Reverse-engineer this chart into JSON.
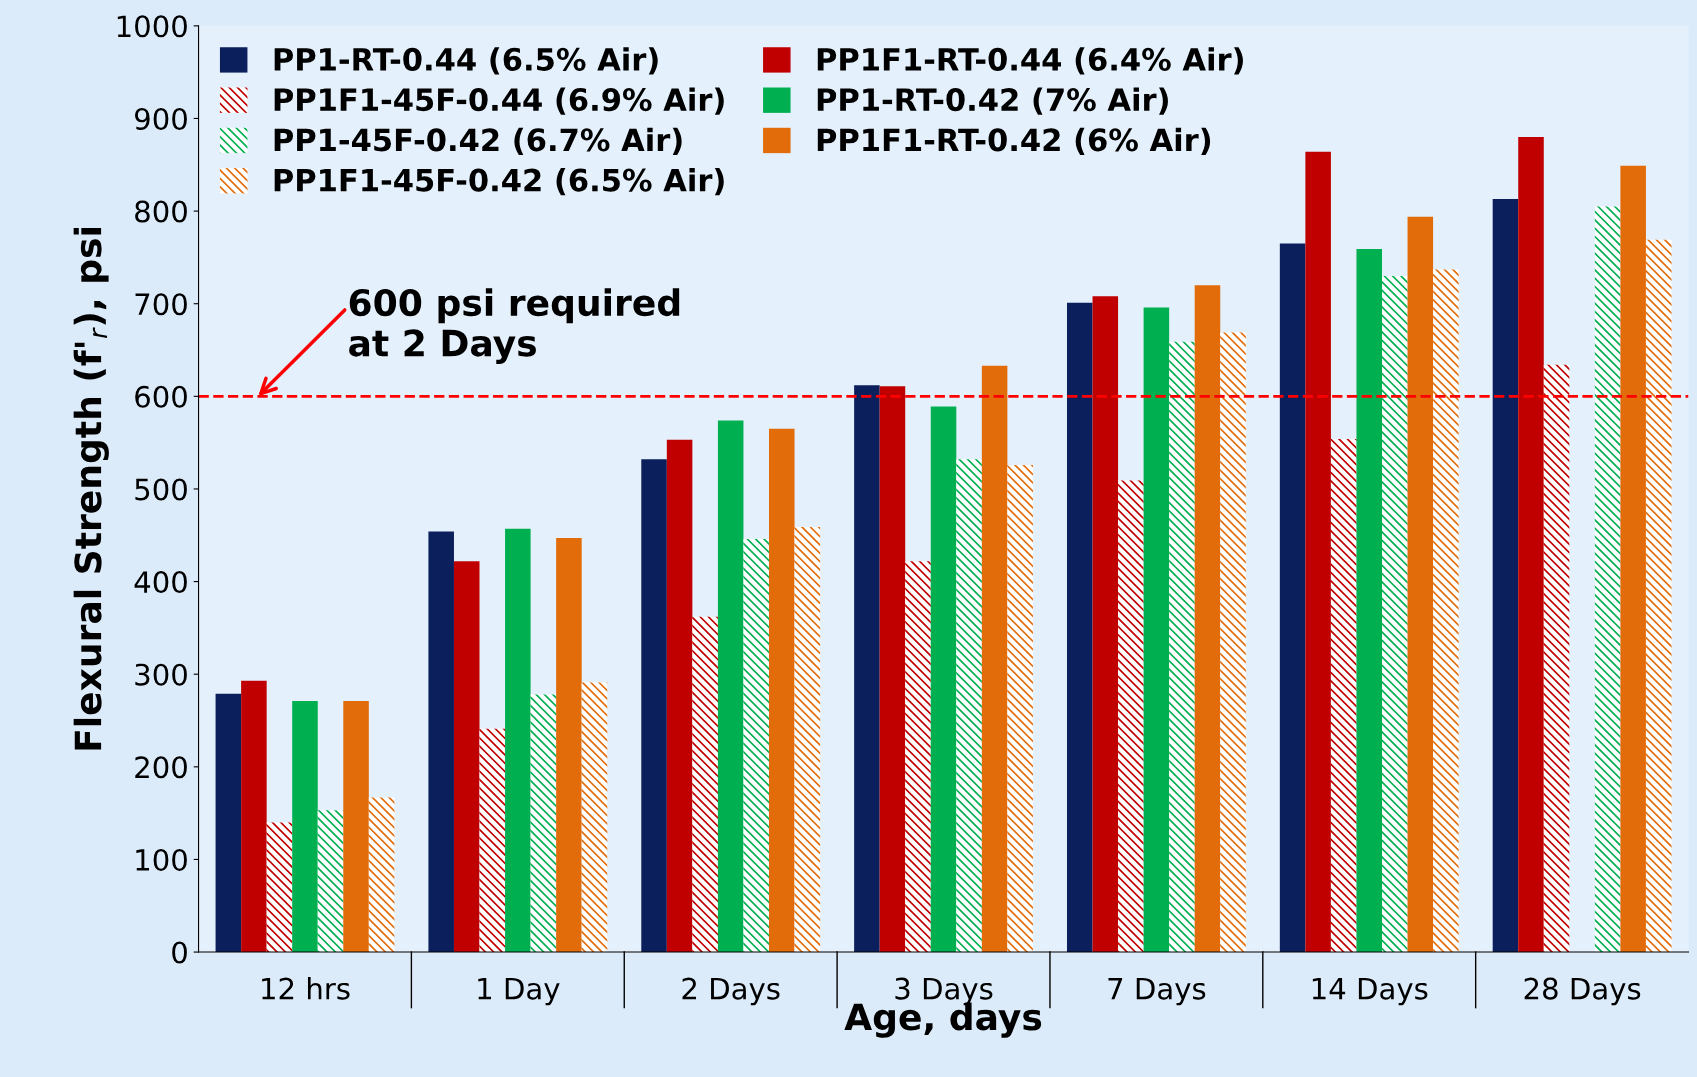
{
  "chart_data": {
    "type": "bar",
    "xlabel": "Age, days",
    "ylabel": "Flexural Strength (f'$_{r}$), psi",
    "categories": [
      "12 hrs",
      "1 Day",
      "2 Days",
      "3 Days",
      "7 Days",
      "14 Days",
      "28 Days"
    ],
    "series": [
      {
        "name": "PP1-RT-0.44 (6.5% Air)",
        "color": "#0b1f5c",
        "values": [
          279,
          454,
          532,
          612,
          701,
          765,
          813
        ]
      },
      {
        "name": "PP1F1-RT-0.44 (6.4% Air)",
        "color": "#c00000",
        "values": [
          293,
          422,
          553,
          611,
          708,
          864,
          880
        ]
      },
      {
        "name": "PP1F1-45F-0.44 (6.9% Air)",
        "color": "#c00000",
        "values": [
          140,
          241,
          362,
          422,
          509,
          554,
          634
        ]
      },
      {
        "name": "PP1-RT-0.42 (7% Air)",
        "color": "#00b050",
        "values": [
          271,
          457,
          574,
          589,
          696,
          759,
          null
        ]
      },
      {
        "name": "PP1-45F-0.42 (6.7% Air)",
        "color": "#00b050",
        "values": [
          153,
          278,
          446,
          532,
          659,
          730,
          805
        ]
      },
      {
        "name": "PP1F1-RT-0.42 (6% Air)",
        "color": "#e36c0a",
        "values": [
          271,
          447,
          565,
          633,
          720,
          794,
          849
        ]
      },
      {
        "name": "PP1F1-45F-0.42 (6.5% Air)",
        "color": "#e36c0a",
        "values": [
          167,
          291,
          459,
          526,
          669,
          737,
          769
        ]
      }
    ],
    "ylim": [
      0,
      1000
    ],
    "yticks": [
      0,
      100,
      200,
      300,
      400,
      500,
      600,
      700,
      800,
      900,
      1000
    ],
    "ref_lines": [
      {
        "axis": "y",
        "value": 600,
        "label": "600 psi required\nat 2 Days",
        "color": "#ff0000",
        "line_style": "dashed"
      }
    ],
    "legend": "top left",
    "grid": false
  }
}
